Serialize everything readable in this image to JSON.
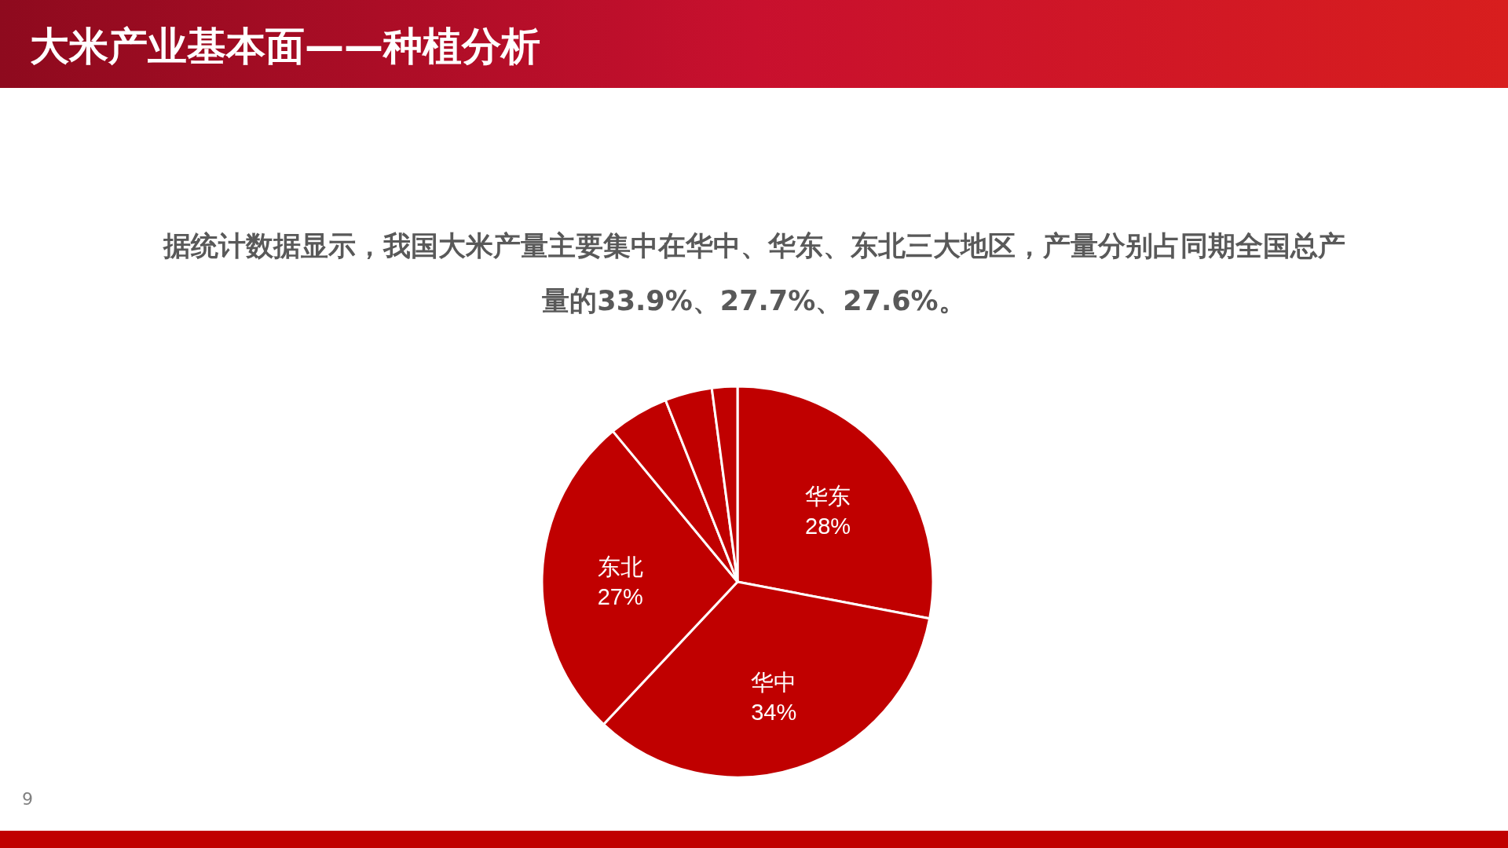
{
  "chart_data": {
    "type": "pie",
    "title": "大米产业基本面——种植分析",
    "subtitle": "据统计数据显示，我国大米产量主要集中在华中、华东、东北三大地区，产量分别占同期全国总产量的33.9%、27.7%、27.6%。",
    "categories": [
      "华东",
      "华中",
      "东北",
      null,
      null,
      null
    ],
    "values": [
      28,
      34,
      27,
      5.0,
      3.9,
      2.1
    ],
    "value_labels": [
      "28%",
      "34%",
      "27%",
      null,
      null,
      null
    ],
    "colors": [
      "#c00000",
      "#c00000",
      "#c00000",
      "#c00000",
      "#c00000",
      "#c00000"
    ],
    "annotations": [
      "9"
    ]
  }
}
